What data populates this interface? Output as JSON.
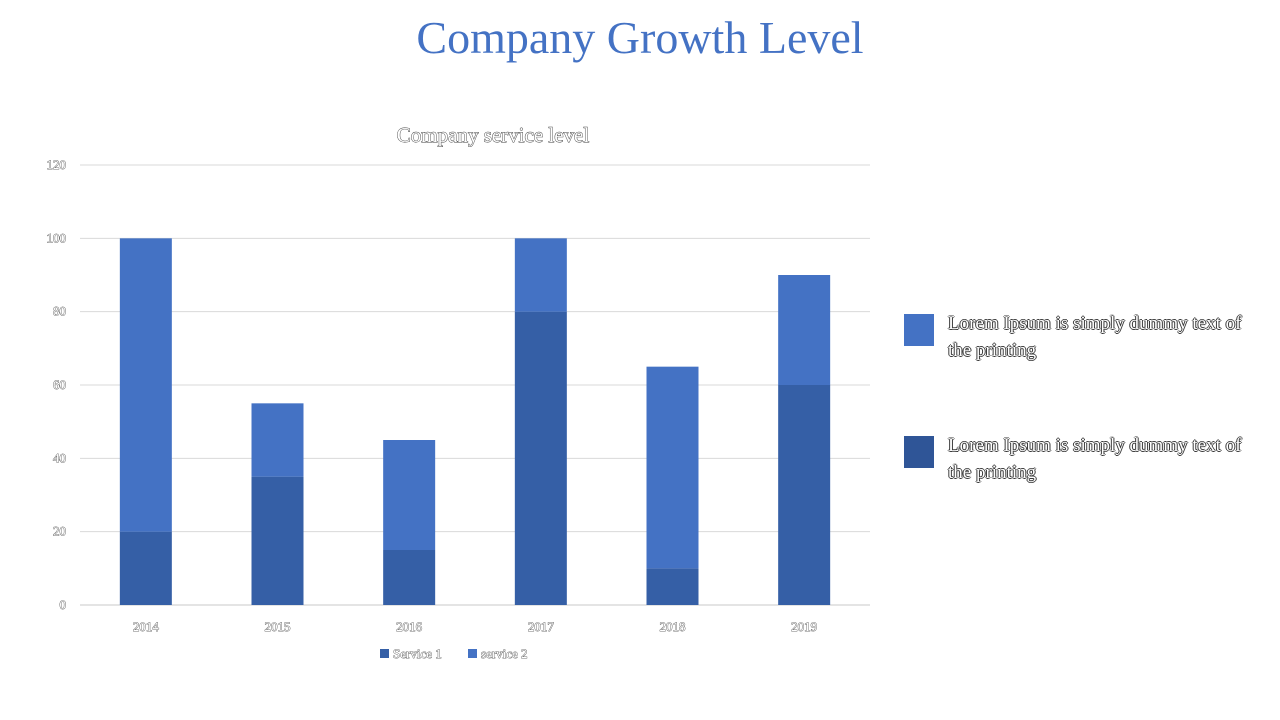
{
  "slide": {
    "title": "Company Growth Level",
    "title_color": "#4472c4"
  },
  "chart_data": {
    "type": "bar",
    "stacked": true,
    "title": "Company service level",
    "categories": [
      "2014",
      "2015",
      "2016",
      "2017",
      "2018",
      "2019"
    ],
    "series": [
      {
        "name": "Service 1",
        "values": [
          20,
          35,
          15,
          80,
          10,
          60
        ],
        "color": "#355fa6"
      },
      {
        "name": "service 2",
        "values": [
          80,
          20,
          30,
          20,
          55,
          30
        ],
        "color": "#4472c4"
      }
    ],
    "ylim": [
      0,
      120
    ],
    "yticks": [
      0,
      20,
      40,
      60,
      80,
      100,
      120
    ],
    "grid": true,
    "legend": "bottom",
    "xlabel": "",
    "ylabel": ""
  },
  "side_legend": [
    {
      "text": "Lorem Ipsum is simply dummy text of the printing",
      "color": "#4472c4"
    },
    {
      "text": "Lorem Ipsum is simply dummy text of the printing",
      "color": "#2f5597"
    }
  ]
}
